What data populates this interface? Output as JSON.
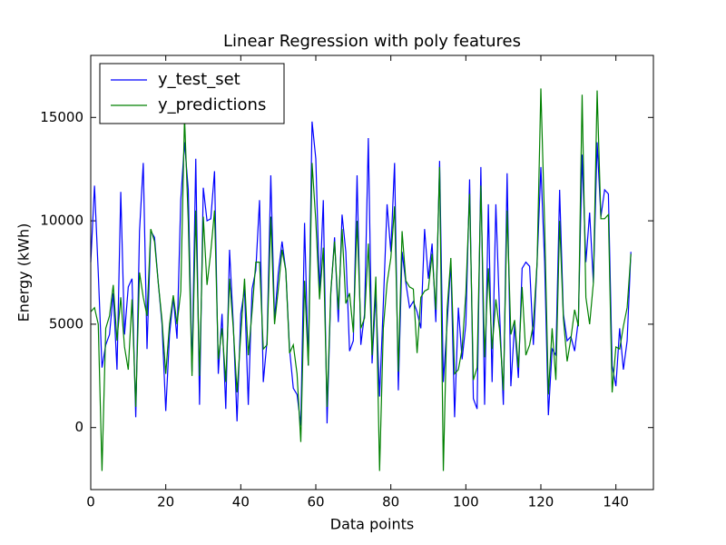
{
  "chart_data": {
    "type": "line",
    "title": "Linear Regression with poly features",
    "x_label": "Data points",
    "y_label": "Energy (kWh)",
    "x": [
      0,
      1,
      2,
      3,
      4,
      5,
      6,
      7,
      8,
      9,
      10,
      11,
      12,
      13,
      14,
      15,
      16,
      17,
      18,
      19,
      20,
      21,
      22,
      23,
      24,
      25,
      26,
      27,
      28,
      29,
      30,
      31,
      32,
      33,
      34,
      35,
      36,
      37,
      38,
      39,
      40,
      41,
      42,
      43,
      44,
      45,
      46,
      47,
      48,
      49,
      50,
      51,
      52,
      53,
      54,
      55,
      56,
      57,
      58,
      59,
      60,
      61,
      62,
      63,
      64,
      65,
      66,
      67,
      68,
      69,
      70,
      71,
      72,
      73,
      74,
      75,
      76,
      77,
      78,
      79,
      80,
      81,
      82,
      83,
      84,
      85,
      86,
      87,
      88,
      89,
      90,
      91,
      92,
      93,
      94,
      95,
      96,
      97,
      98,
      99,
      100,
      101,
      102,
      103,
      104,
      105,
      106,
      107,
      108,
      109,
      110,
      111,
      112,
      113,
      114,
      115,
      116,
      117,
      118,
      119,
      120,
      121,
      122,
      123,
      124,
      125,
      126,
      127,
      128,
      129,
      130,
      131,
      132,
      133,
      134,
      135,
      136,
      137,
      138,
      139,
      140,
      141,
      142,
      143,
      144
    ],
    "series": [
      {
        "name": "y_test_set",
        "color": "#0000ff",
        "values": [
          8000,
          11700,
          7500,
          2900,
          4000,
          4500,
          6500,
          2800,
          11400,
          4500,
          6800,
          7200,
          500,
          9500,
          12800,
          3800,
          9500,
          9200,
          7000,
          5000,
          800,
          4500,
          6300,
          4300,
          11000,
          13800,
          11500,
          2700,
          13000,
          1100,
          11600,
          10000,
          10100,
          12400,
          2600,
          5500,
          900,
          8600,
          5000,
          300,
          5500,
          6700,
          1100,
          6700,
          7600,
          11000,
          2200,
          4200,
          12200,
          5200,
          7500,
          9000,
          7600,
          3800,
          1900,
          1600,
          100,
          9900,
          3000,
          14800,
          13000,
          6500,
          11000,
          200,
          6500,
          9200,
          5100,
          10300,
          8500,
          3700,
          4200,
          12200,
          4000,
          5500,
          14000,
          3100,
          6500,
          1500,
          6000,
          10800,
          8500,
          12800,
          1800,
          8500,
          7000,
          5800,
          6100,
          5600,
          4800,
          9600,
          7200,
          8900,
          5100,
          12900,
          2200,
          5000,
          8000,
          500,
          5800,
          3300,
          5000,
          12000,
          1400,
          900,
          12600,
          1100,
          10800,
          2200,
          10800,
          5500,
          1100,
          12300,
          2000,
          5000,
          2400,
          7700,
          8000,
          7800,
          4000,
          8000,
          12600,
          8000,
          600,
          3800,
          3500,
          11500,
          5500,
          4200,
          4400,
          3700,
          5200,
          13200,
          8000,
          10400,
          7000,
          13800,
          10200,
          11500,
          11300,
          3000,
          2000,
          4800,
          2800,
          4200,
          8500
        ]
      },
      {
        "name": "y_predictions",
        "color": "#008000",
        "values": [
          5600,
          5800,
          5000,
          -2100,
          4800,
          5400,
          6900,
          4200,
          6300,
          3900,
          2800,
          6200,
          1000,
          7500,
          6300,
          5400,
          9600,
          9000,
          7000,
          5200,
          2600,
          5000,
          6400,
          5000,
          6600,
          15000,
          10000,
          2500,
          10500,
          2500,
          10200,
          6900,
          8500,
          10500,
          3300,
          4800,
          2200,
          7200,
          4800,
          1700,
          4500,
          7200,
          3500,
          5600,
          8000,
          8000,
          3800,
          4000,
          10200,
          5000,
          6700,
          8600,
          7600,
          3600,
          4000,
          2600,
          -700,
          7100,
          3000,
          12800,
          10000,
          6200,
          8700,
          1000,
          6600,
          9000,
          5700,
          9600,
          6000,
          6500,
          4600,
          10000,
          4800,
          5300,
          8900,
          3500,
          7300,
          -2100,
          4800,
          7000,
          8200,
          10700,
          2700,
          9500,
          7100,
          6800,
          6700,
          3600,
          6300,
          6600,
          6700,
          8400,
          5700,
          12600,
          -2100,
          5700,
          8200,
          2600,
          2800,
          3800,
          6500,
          11300,
          2300,
          2900,
          11700,
          3400,
          7700,
          3800,
          6200,
          4700,
          1800,
          10500,
          4500,
          5200,
          2900,
          6800,
          3500,
          4000,
          5000,
          8000,
          16400,
          9800,
          1600,
          4800,
          2300,
          10000,
          5300,
          3200,
          4300,
          5700,
          4900,
          16100,
          6300,
          5000,
          7000,
          16300,
          10100,
          10100,
          10300,
          1700,
          3900,
          3800,
          4900,
          5800,
          8400
        ]
      }
    ],
    "xlim": [
      0,
      150
    ],
    "xticks": [
      0,
      20,
      40,
      60,
      80,
      100,
      120,
      140
    ],
    "ylim": [
      -3000,
      18000
    ],
    "yticks": [
      0,
      5000,
      10000,
      15000
    ],
    "legend": "upper left",
    "grid": false
  }
}
